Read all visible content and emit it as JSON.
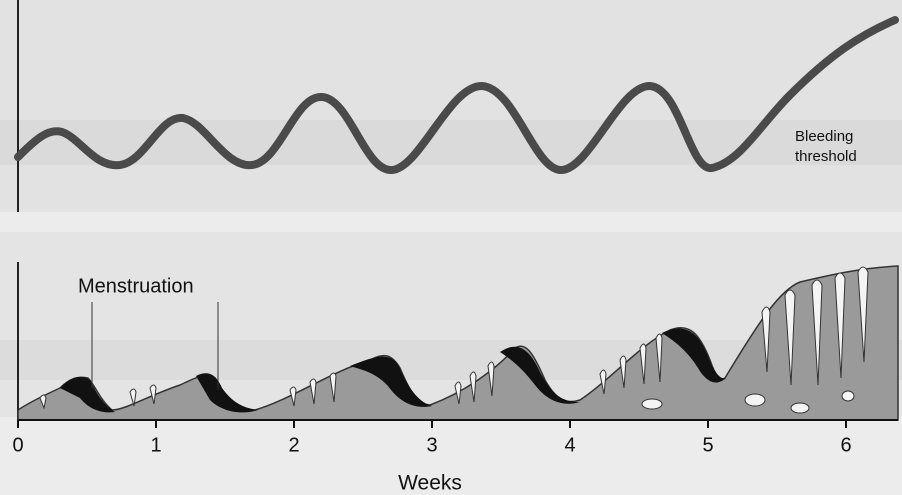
{
  "top_panel": {
    "threshold_label": [
      "Bleeding",
      "threshold"
    ]
  },
  "bottom_panel": {
    "annotation": "Menstruation"
  },
  "axis": {
    "label": "Weeks",
    "ticks": [
      "0",
      "1",
      "2",
      "3",
      "4",
      "5",
      "6"
    ]
  }
}
